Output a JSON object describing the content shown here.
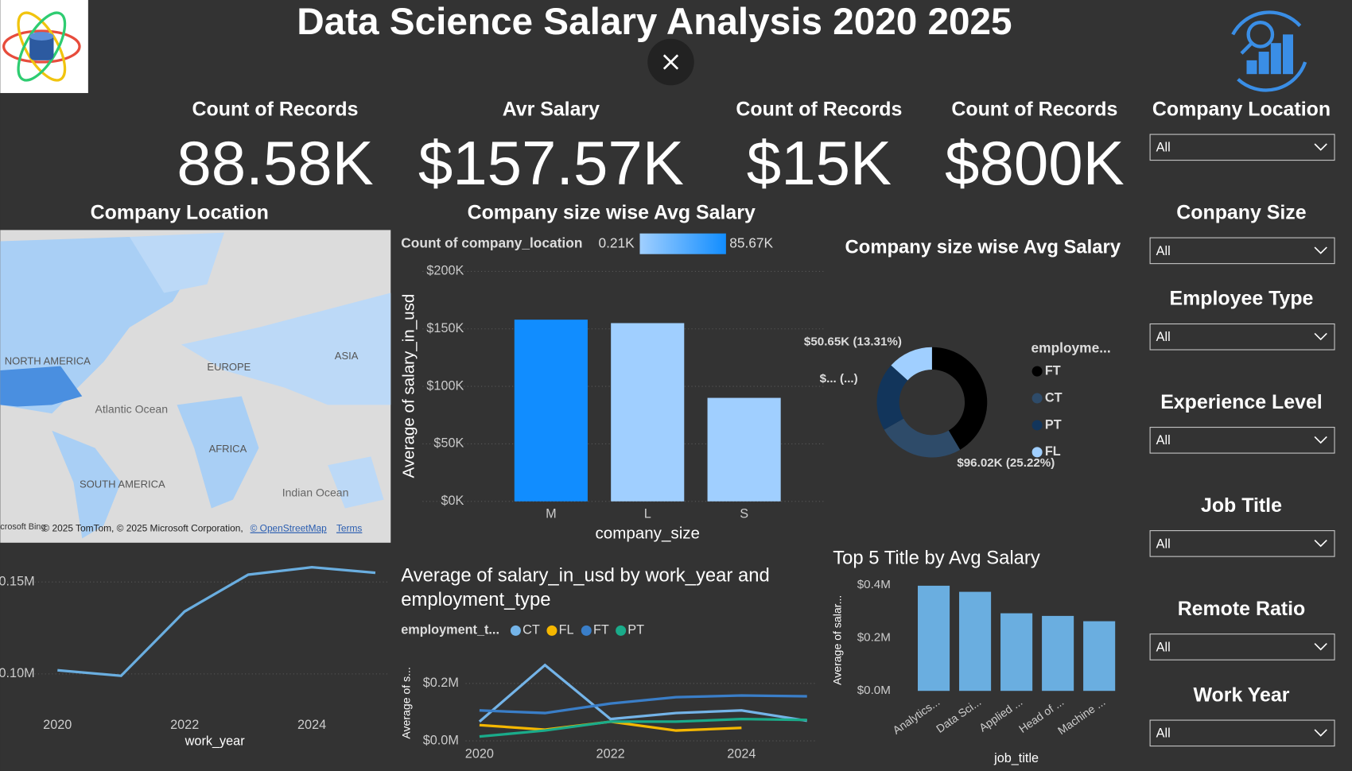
{
  "header": {
    "title": "Data Science Salary Analysis 2020 2025"
  },
  "kpis": [
    {
      "label": "Count of Records",
      "value": "88.58K"
    },
    {
      "label": "Avr Salary",
      "value": "$157.57K"
    },
    {
      "label": "Count of Records",
      "value": "$15K"
    },
    {
      "label": "Count of Records",
      "value": "$800K"
    }
  ],
  "slicers": [
    {
      "label": "Company Location",
      "value": "All"
    },
    {
      "label": "Conpany Size",
      "value": "All"
    },
    {
      "label": "Employee Type",
      "value": "All"
    },
    {
      "label": "Experience Level",
      "value": "All"
    },
    {
      "label": "Job Title",
      "value": "All"
    },
    {
      "label": "Remote Ratio",
      "value": "All"
    },
    {
      "label": "Work Year",
      "value": "All"
    }
  ],
  "map": {
    "title": "Company Location",
    "labels": [
      "NORTH AMERICA",
      "EUROPE",
      "ASIA",
      "Atlantic Ocean",
      "AFRICA",
      "SOUTH AMERICA",
      "Indian Ocean"
    ],
    "attribution": "© 2025 TomTom, © 2025 Microsoft Corporation,",
    "osm": "© OpenStreetMap",
    "terms": "Terms",
    "bing": "crosoft Bing"
  },
  "chart_data": [
    {
      "type": "bar",
      "title": "Company size wise Avg Salary",
      "legend_title": "Count of company_location",
      "legend_min": "0.21K",
      "legend_max": "85.67K",
      "categories": [
        "M",
        "L",
        "S"
      ],
      "values": [
        158000,
        155000,
        90000
      ],
      "colors": [
        "#118dff",
        "#a0cfff",
        "#a0cfff"
      ],
      "ylim": [
        0,
        200000
      ],
      "yticks": [
        {
          "value": 0,
          "label": "$0K"
        },
        {
          "value": 50000,
          "label": "$50K"
        },
        {
          "value": 100000,
          "label": "$100K"
        },
        {
          "value": 150000,
          "label": "$150K"
        },
        {
          "value": 200000,
          "label": "$200K"
        }
      ],
      "x_label": "company_size",
      "y_label": "Average of salary_in_usd",
      "grid": true
    },
    {
      "type": "donut",
      "title": "Company size wise Avg Salary",
      "legend_title": "employme...",
      "categories": [
        "FT",
        "CT",
        "PT",
        "FL"
      ],
      "values": [
        158000,
        96020,
        76000,
        50650
      ],
      "value_labels": [
        null,
        "$96.02K (25.22%)",
        "$... (...)",
        "$50.65K (13.31%)"
      ],
      "colors": [
        "#000000",
        "#2e4b69",
        "#12355b",
        "#a0cfff"
      ]
    },
    {
      "type": "line",
      "x": [
        2020,
        2021,
        2022,
        2023,
        2024,
        2025
      ],
      "values": [
        102000,
        99000,
        134000,
        154000,
        158000,
        155000
      ],
      "color": "#6aaee0",
      "xlim": [
        2019.1,
        2025.2
      ],
      "xticks": [
        2020,
        2022,
        2024
      ],
      "ylim": [
        80000,
        162000
      ],
      "yticks": [
        {
          "value": 100000,
          "label": "0.10M"
        },
        {
          "value": 150000,
          "label": "0.15M"
        }
      ],
      "x_label": "work_year",
      "grid": true
    },
    {
      "type": "multiline",
      "title": "Average of salary_in_usd by work_year and employment_type",
      "legend_title": "employment_t...",
      "x": [
        2020,
        2021,
        2022,
        2023,
        2024,
        2025
      ],
      "series": [
        {
          "name": "CT",
          "color": "#74b4e8",
          "values": [
            67000,
            264000,
            76000,
            97000,
            106000,
            70000
          ]
        },
        {
          "name": "FL",
          "color": "#f5b700",
          "values": [
            55000,
            39000,
            67000,
            36000,
            45000,
            null
          ]
        },
        {
          "name": "FT",
          "color": "#3a7ec8",
          "values": [
            106000,
            97000,
            130000,
            152000,
            158000,
            155000
          ]
        },
        {
          "name": "PT",
          "color": "#1aab8a",
          "values": [
            15000,
            36000,
            67000,
            67000,
            76000,
            73000
          ]
        }
      ],
      "xlim": [
        2020,
        2025
      ],
      "xticks": [
        2020,
        2022,
        2024
      ],
      "ylim": [
        -15000,
        300000
      ],
      "yticks": [
        {
          "value": 0,
          "label": "$0.0M"
        },
        {
          "value": 200000,
          "label": "$0.2M"
        }
      ],
      "y_label": "Average of s...",
      "grid": true
    },
    {
      "type": "bar",
      "title": "Top 5 Title by Avg Salary",
      "categories": [
        "Analytics...",
        "Data Sci...",
        "Applied ...",
        "Head of ...",
        "Machine ..."
      ],
      "values": [
        397000,
        374000,
        293000,
        283000,
        263000
      ],
      "color": "#6aaee0",
      "ylim": [
        0,
        400000
      ],
      "yticks": [
        {
          "value": 0,
          "label": "$0.0M"
        },
        {
          "value": 200000,
          "label": "$0.2M"
        },
        {
          "value": 400000,
          "label": "$0.4M"
        }
      ],
      "x_label": "job_title",
      "y_label": "Average of salar...",
      "grid": false
    }
  ]
}
